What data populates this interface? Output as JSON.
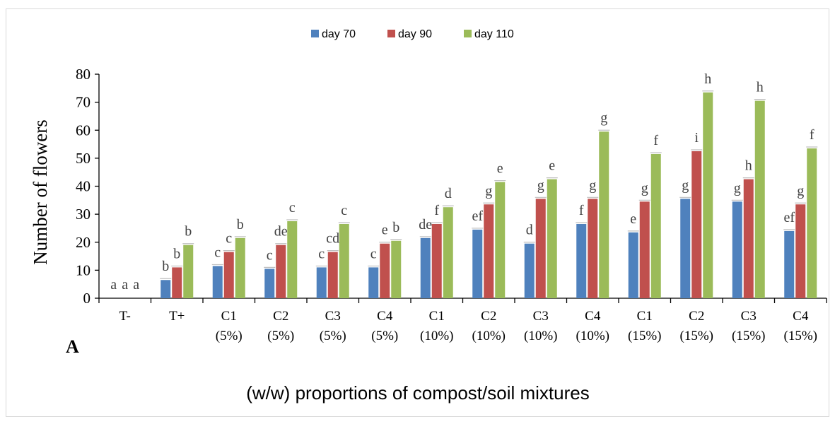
{
  "chart_data": {
    "type": "bar",
    "title": "",
    "panel_label": "A",
    "ylabel": "Number of flowers",
    "xlabel": "(w/w) proportions of compost/soil mixtures",
    "ylim": [
      0,
      80
    ],
    "yticks": [
      "0",
      "10",
      "20",
      "30",
      "40",
      "50",
      "60",
      "70",
      "80"
    ],
    "legend_position": "top-center",
    "categories": [
      [
        "T-"
      ],
      [
        "T+"
      ],
      [
        "C1",
        "(5%)"
      ],
      [
        "C2",
        "(5%)"
      ],
      [
        "C3",
        "(5%)"
      ],
      [
        "C4",
        "(5%)"
      ],
      [
        "C1",
        "(10%)"
      ],
      [
        "C2",
        "(10%)"
      ],
      [
        "C3",
        "(10%)"
      ],
      [
        "C4",
        "(10%)"
      ],
      [
        "C1",
        "(15%)"
      ],
      [
        "C2",
        "(15%)"
      ],
      [
        "C3",
        "(15%)"
      ],
      [
        "C4",
        "(15%)"
      ]
    ],
    "series": [
      {
        "name": "day 70",
        "color": "#4F81BD",
        "values": [
          0,
          6.5,
          11.5,
          10.5,
          11,
          11,
          21.5,
          24.5,
          19.5,
          26.5,
          23.5,
          35.5,
          34.5,
          24
        ],
        "letters": [
          "a",
          "b",
          "c",
          "c",
          "c",
          "c",
          "de",
          "ef",
          "d",
          "f",
          "e",
          "g",
          "g",
          "ef"
        ]
      },
      {
        "name": "day 90",
        "color": "#C0504D",
        "values": [
          0,
          11,
          16.5,
          19,
          16.5,
          19.5,
          26.5,
          33.5,
          35.5,
          35.5,
          34.5,
          52.5,
          42.5,
          33.5
        ],
        "letters": [
          "a",
          "b",
          "c",
          "de",
          "cd",
          "e",
          "f",
          "g",
          "g",
          "g",
          "g",
          "i",
          "h",
          "g"
        ]
      },
      {
        "name": "day  110",
        "color": "#9BBB59",
        "values": [
          0,
          19,
          21.5,
          27.5,
          26.5,
          20.5,
          32.5,
          41.5,
          42.5,
          59.5,
          51.5,
          73.5,
          70.5,
          53.5
        ],
        "letters": [
          "a",
          "b",
          "b",
          "c",
          "c",
          "b",
          "d",
          "e",
          "e",
          "g",
          "f",
          "h",
          "h",
          "f"
        ]
      }
    ]
  }
}
